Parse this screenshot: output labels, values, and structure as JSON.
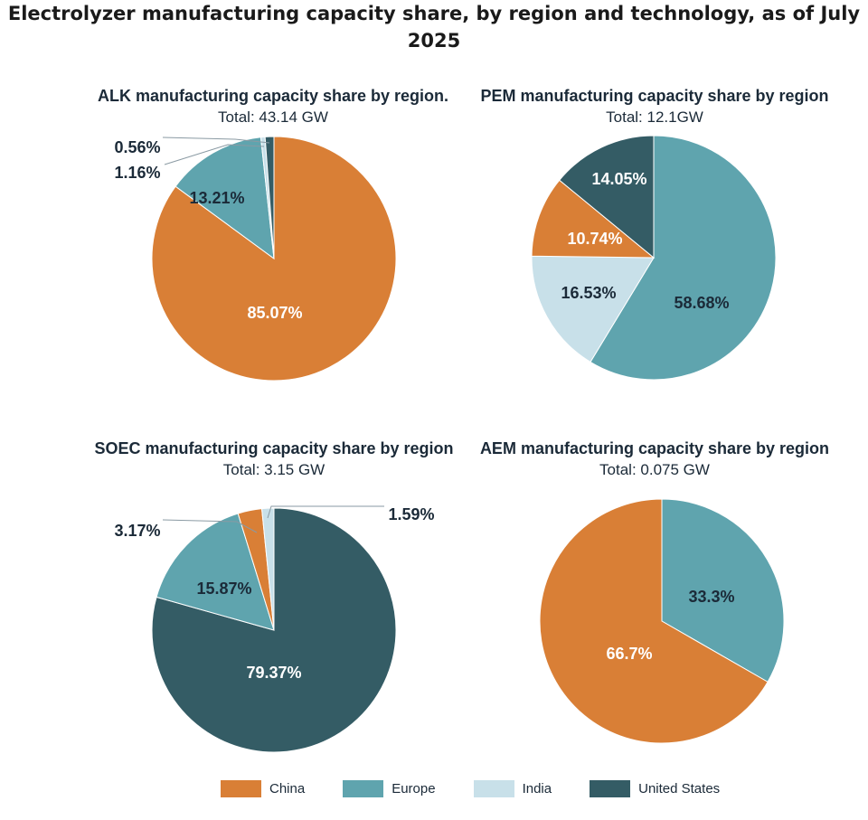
{
  "page_title": "Electrolyzer manufacturing capacity share, by region and technology, as of July 2025",
  "colors": {
    "China": "#d97f36",
    "Europe": "#5fa4ae",
    "India": "#c8e0e9",
    "United States": "#345c65",
    "label_dark": "#1b2a38",
    "label_light": "#ffffff"
  },
  "legend": [
    {
      "label": "China",
      "color": "#d97f36"
    },
    {
      "label": "Europe",
      "color": "#5fa4ae"
    },
    {
      "label": "India",
      "color": "#c8e0e9"
    },
    {
      "label": "United States",
      "color": "#345c65"
    }
  ],
  "chart_data": [
    {
      "type": "pie",
      "title": "ALK manufacturing capacity share by region.",
      "subtitle": "Total: 43.14 GW",
      "slices": [
        {
          "name": "China",
          "value": 85.07,
          "label": "85.07%"
        },
        {
          "name": "Europe",
          "value": 13.21,
          "label": "13.21%"
        },
        {
          "name": "India",
          "value": 0.56,
          "label": "0.56%"
        },
        {
          "name": "United States",
          "value": 1.16,
          "label": "1.16%"
        }
      ]
    },
    {
      "type": "pie",
      "title": "PEM manufacturing capacity share by region",
      "subtitle": "Total: 12.1GW",
      "slices": [
        {
          "name": "Europe",
          "value": 58.68,
          "label": "58.68%"
        },
        {
          "name": "India",
          "value": 16.53,
          "label": "16.53%"
        },
        {
          "name": "China",
          "value": 10.74,
          "label": "10.74%"
        },
        {
          "name": "United States",
          "value": 14.05,
          "label": "14.05%"
        }
      ]
    },
    {
      "type": "pie",
      "title": "SOEC manufacturing capacity share by region",
      "subtitle": "Total: 3.15 GW",
      "slices": [
        {
          "name": "United States",
          "value": 79.37,
          "label": "79.37%"
        },
        {
          "name": "Europe",
          "value": 15.87,
          "label": "15.87%"
        },
        {
          "name": "China",
          "value": 3.17,
          "label": "3.17%"
        },
        {
          "name": "India",
          "value": 1.59,
          "label": "1.59%"
        }
      ]
    },
    {
      "type": "pie",
      "title": "AEM manufacturing capacity share by region",
      "subtitle": "Total: 0.075 GW",
      "slices": [
        {
          "name": "Europe",
          "value": 33.3,
          "label": "33.3%"
        },
        {
          "name": "China",
          "value": 66.7,
          "label": "66.7%"
        }
      ]
    }
  ]
}
